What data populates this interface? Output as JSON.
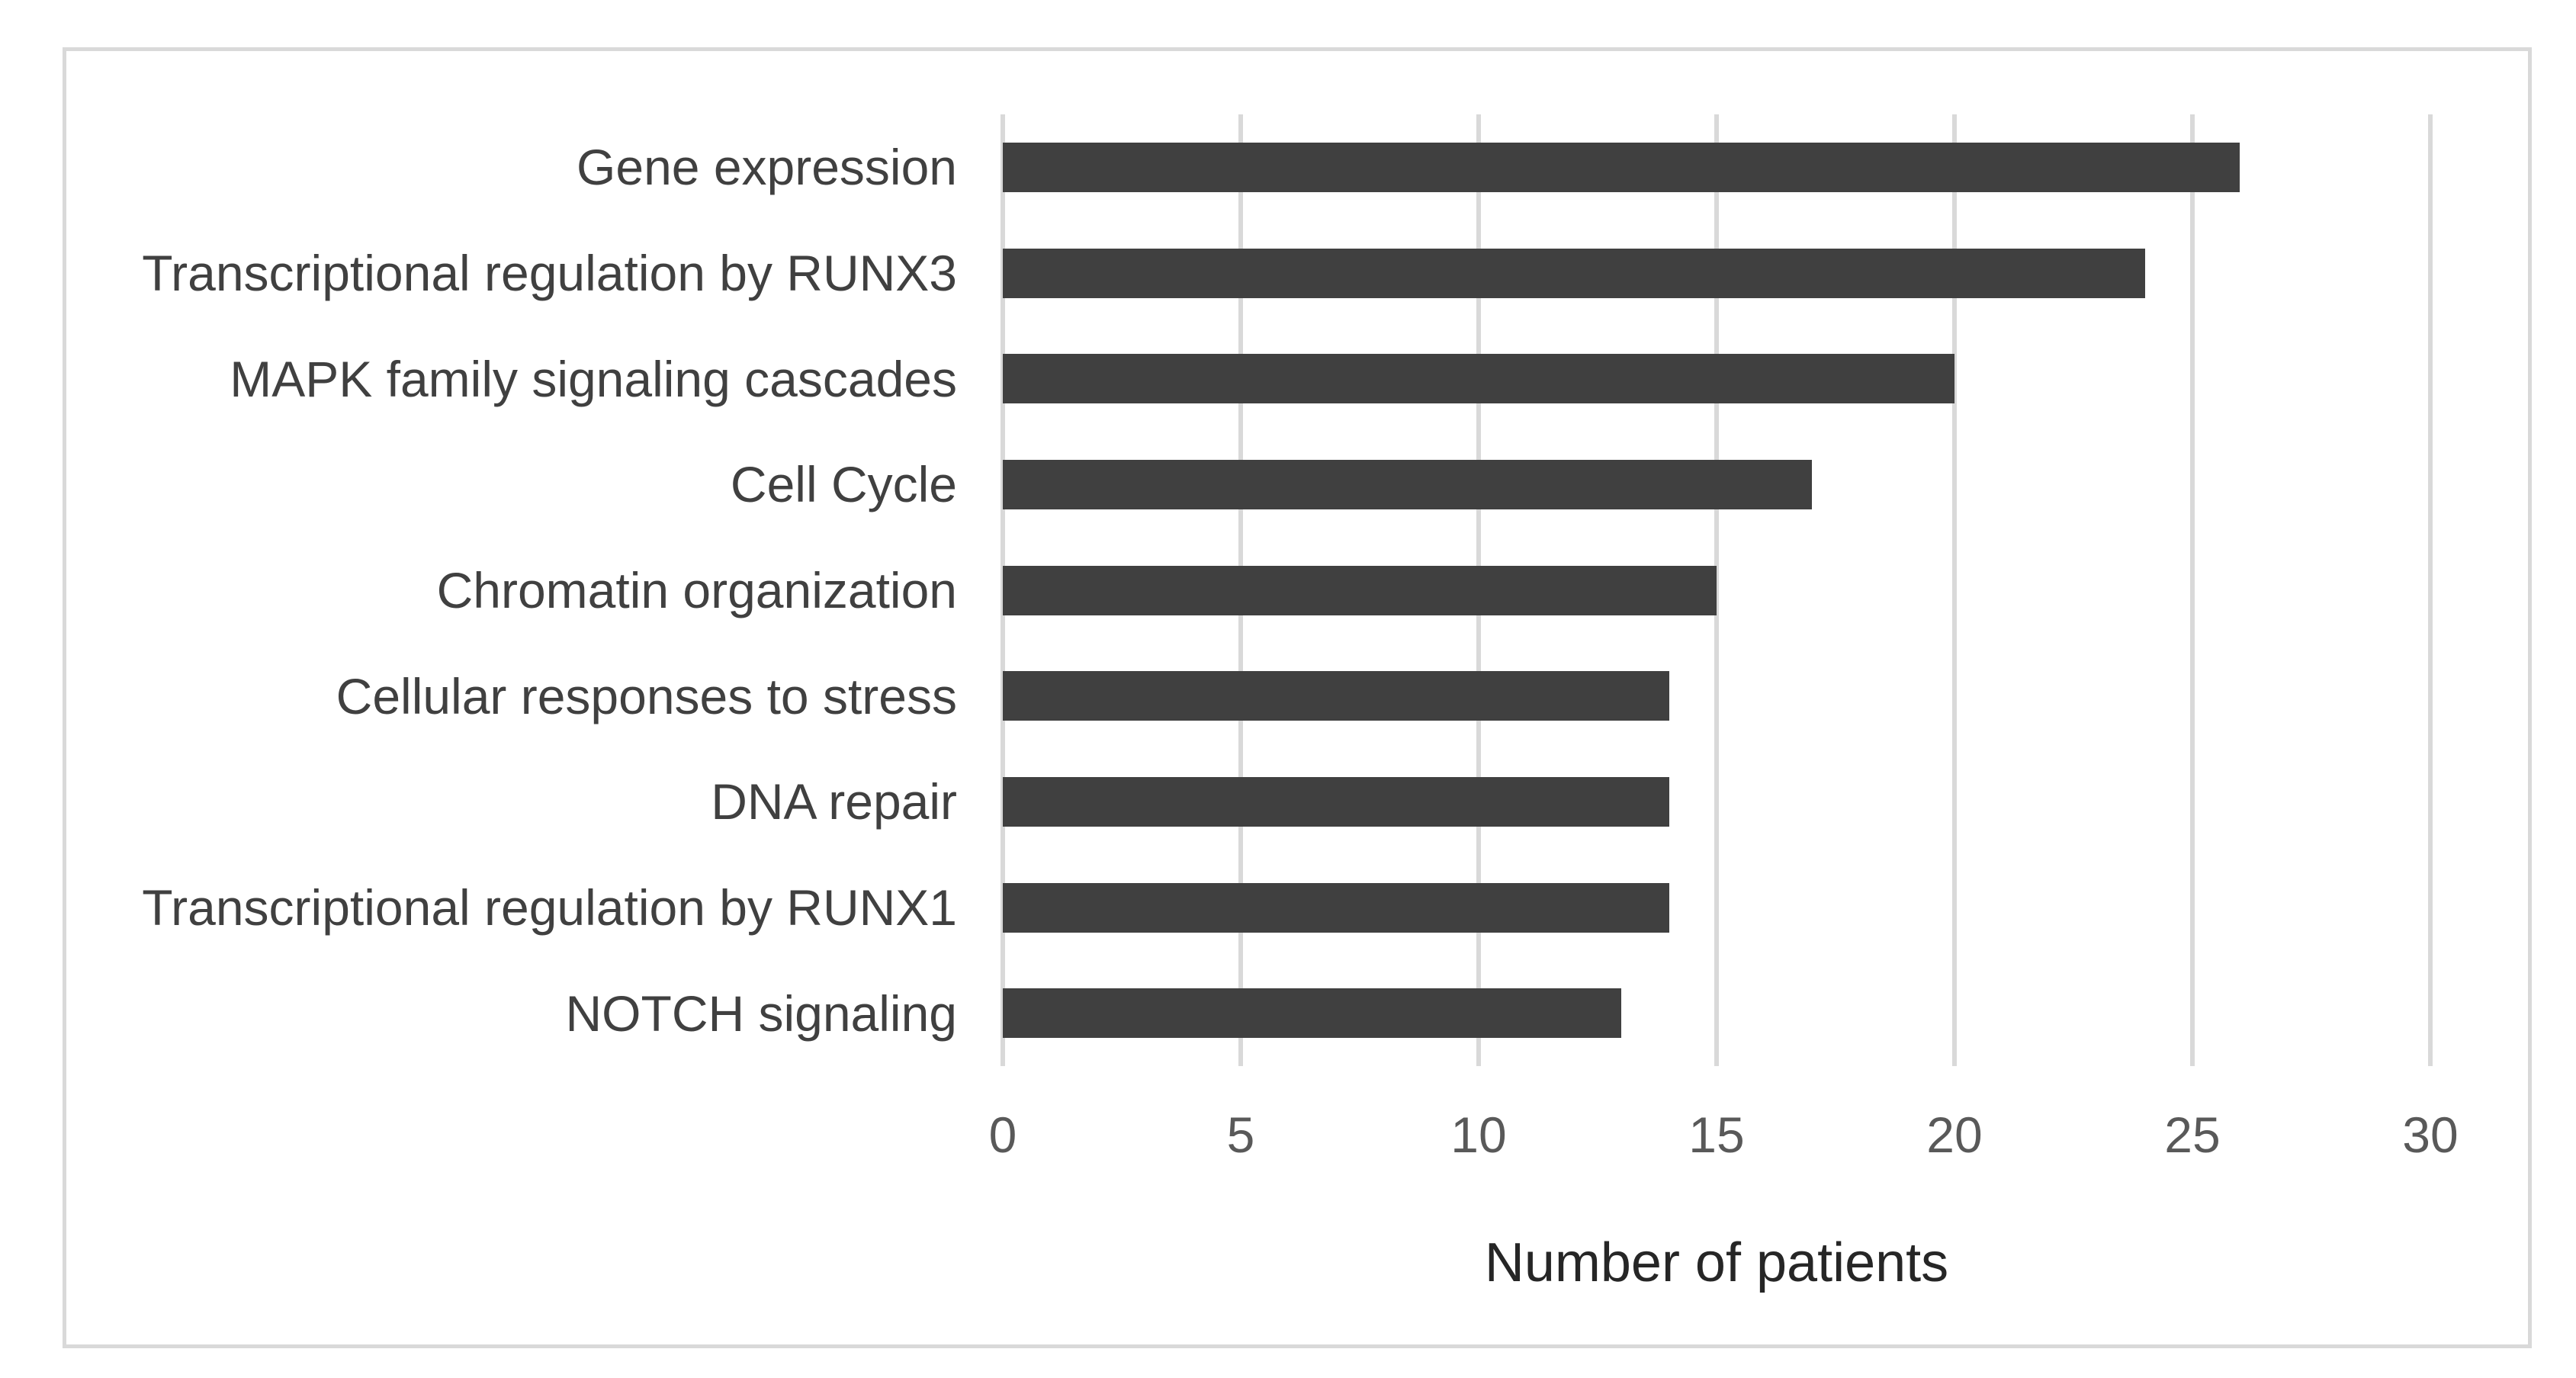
{
  "chart_data": {
    "type": "bar",
    "orientation": "horizontal",
    "categories": [
      "Gene expression",
      "Transcriptional regulation by RUNX3",
      "MAPK family signaling cascades",
      "Cell Cycle",
      "Chromatin organization",
      "Cellular responses to stress",
      "DNA repair",
      "Transcriptional regulation by RUNX1",
      "NOTCH signaling"
    ],
    "values": [
      26,
      24,
      20,
      17,
      15,
      14,
      14,
      14,
      13
    ],
    "xlabel": "Number of patients",
    "x_ticks": [
      "0",
      "5",
      "10",
      "15",
      "20",
      "25",
      "30"
    ],
    "xlim": [
      0,
      30
    ],
    "grid": "vertical-only",
    "legend": "none",
    "colors": {
      "bar": "#404040",
      "gridline": "#D9D9D9",
      "frame_border": "#D9D9D9",
      "tick_label": "#595959",
      "category_label": "#404040",
      "axis_title": "#262626",
      "background": "#FFFFFF"
    }
  }
}
